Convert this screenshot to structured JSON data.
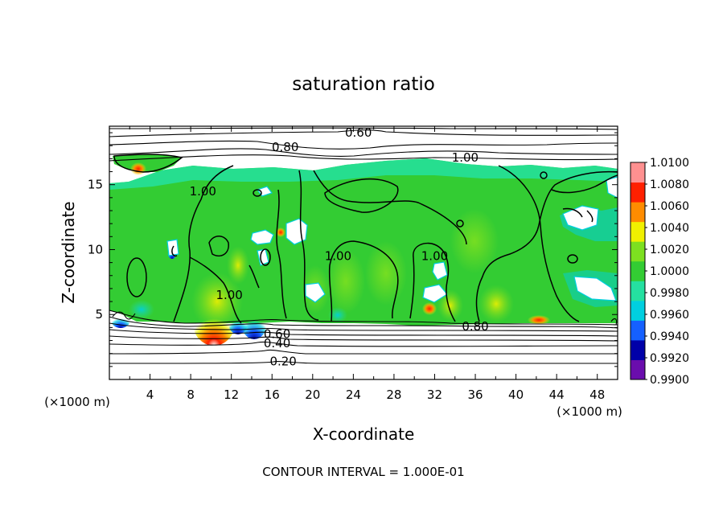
{
  "chart_data": {
    "type": "heatmap",
    "title": "saturation ratio",
    "xlabel": "X-coordinate",
    "ylabel": "Z-coordinate",
    "x_units": "(×1000 m)",
    "y_units": "(×1000 m)",
    "xlim": [
      0,
      50
    ],
    "ylim": [
      0,
      19.5
    ],
    "x_ticks": [
      4,
      8,
      12,
      16,
      20,
      24,
      28,
      32,
      36,
      40,
      44,
      48
    ],
    "y_ticks": [
      5,
      10,
      15
    ],
    "footer": "CONTOUR INTERVAL = 1.000E-01",
    "colorbar": {
      "labels": [
        "0.9900",
        "0.9920",
        "0.9940",
        "0.9960",
        "0.9980",
        "1.0000",
        "1.0020",
        "1.0040",
        "1.0060",
        "1.0080",
        "1.0100"
      ],
      "colors": [
        "#6a0dad",
        "#0000a8",
        "#1560ff",
        "#00cfe0",
        "#25e0a0",
        "#33cc33",
        "#7de020",
        "#f0f000",
        "#ff8c00",
        "#ff2000",
        "#ff9090"
      ]
    },
    "contour_labels": [
      {
        "text": "0.60",
        "x": 24.5,
        "y": 19.0
      },
      {
        "text": "0.80",
        "x": 17.3,
        "y": 17.9
      },
      {
        "text": "1.00",
        "x": 35.0,
        "y": 17.1
      },
      {
        "text": "1.00",
        "x": 9.2,
        "y": 14.5
      },
      {
        "text": "1.00",
        "x": 22.5,
        "y": 9.5
      },
      {
        "text": "1.00",
        "x": 32.0,
        "y": 9.5
      },
      {
        "text": "1.00",
        "x": 11.8,
        "y": 6.5
      },
      {
        "text": "0.80",
        "x": 36.0,
        "y": 4.1
      },
      {
        "text": "0.60",
        "x": 16.5,
        "y": 3.5
      },
      {
        "text": "0.40",
        "x": 16.5,
        "y": 2.8
      },
      {
        "text": "0.20",
        "x": 17.1,
        "y": 1.4
      }
    ],
    "hotspots": [
      {
        "x": 9.7,
        "z": 4.8,
        "value": 1.01
      },
      {
        "x": 2.5,
        "z": 16.3,
        "value": 1.006
      },
      {
        "x": 17.0,
        "z": 11.5,
        "value": 1.006
      },
      {
        "x": 31.0,
        "z": 5.1,
        "value": 1.006
      },
      {
        "x": 42.3,
        "z": 4.9,
        "value": 1.008
      },
      {
        "x": 14.2,
        "z": 4.9,
        "value": 0.992
      },
      {
        "x": 13.0,
        "z": 4.9,
        "value": 0.994
      },
      {
        "x": 6.2,
        "z": 10.2,
        "value": 0.994
      },
      {
        "x": 10.9,
        "z": 6.5,
        "value": 1.003
      },
      {
        "x": 38.3,
        "z": 5.6,
        "value": 1.003
      }
    ]
  }
}
